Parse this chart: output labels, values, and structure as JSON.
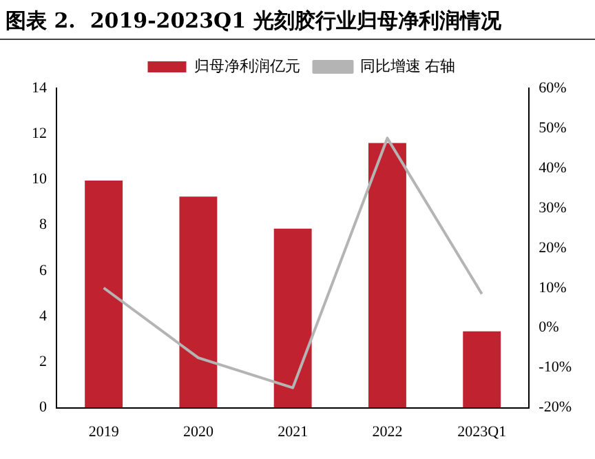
{
  "chart_data": {
    "type": "bar",
    "title": "图表 2.  2019-2023Q1 光刻胶行业归母净利润情况",
    "categories": [
      "2019",
      "2020",
      "2021",
      "2022",
      "2023Q1"
    ],
    "series": [
      {
        "name": "归母净利润亿元",
        "color": "#c0232f",
        "values": [
          9.95,
          9.25,
          7.85,
          11.6,
          3.35
        ]
      },
      {
        "name": "同比增速 右轴",
        "type": "line",
        "axis": "y2",
        "color": "#b4b4b4",
        "values": [
          10,
          -7.5,
          -15,
          47.5,
          8.5
        ]
      }
    ],
    "ylim": [
      0,
      14
    ],
    "yticks": [
      0,
      2,
      4,
      6,
      8,
      10,
      12,
      14
    ],
    "y2lim": [
      -20,
      60
    ],
    "y2ticks": [
      {
        "value": -20,
        "label": "-20%"
      },
      {
        "value": -10,
        "label": "-10%"
      },
      {
        "value": 0,
        "label": "0%"
      },
      {
        "value": 10,
        "label": "10%"
      },
      {
        "value": 20,
        "label": "20%"
      },
      {
        "value": 30,
        "label": "30%"
      },
      {
        "value": 40,
        "label": "40%"
      },
      {
        "value": 50,
        "label": "50%"
      },
      {
        "value": 60,
        "label": "60%"
      }
    ],
    "grid": false,
    "legend": "top",
    "marker": "none",
    "line_style": "solid"
  }
}
